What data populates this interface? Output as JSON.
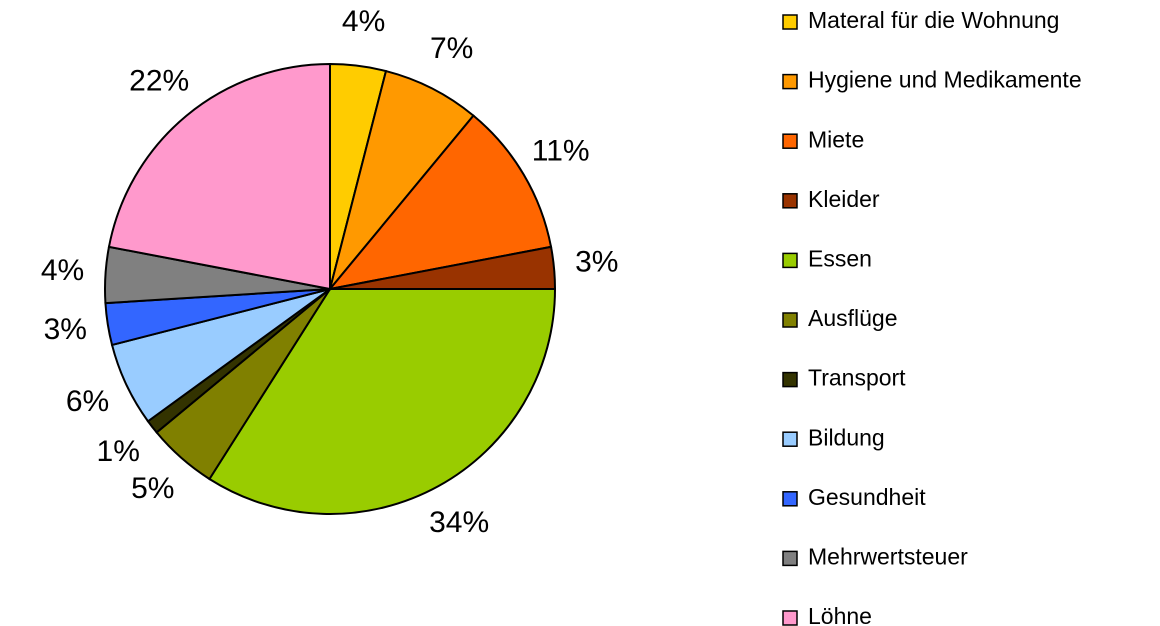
{
  "chart_data": {
    "type": "pie",
    "categories": [
      "Materal für die Wohnung",
      "Hygiene und Medikamente",
      "Miete",
      "Kleider",
      "Essen",
      "Ausflüge",
      "Transport",
      "Bildung",
      "Gesundheit",
      "Mehrwertsteuer",
      "Löhne"
    ],
    "values": [
      4,
      7,
      11,
      3,
      34,
      5,
      1,
      6,
      3,
      4,
      22
    ],
    "value_labels": [
      "4%",
      "7%",
      "11%",
      "3%",
      "34%",
      "5%",
      "1%",
      "6%",
      "3%",
      "4%",
      "22%"
    ],
    "colors": [
      "#ffcc00",
      "#ff9900",
      "#ff6600",
      "#993300",
      "#99cc00",
      "#808000",
      "#333300",
      "#99ccff",
      "#3366ff",
      "#808080",
      "#ff99cc"
    ],
    "legend": "right"
  }
}
